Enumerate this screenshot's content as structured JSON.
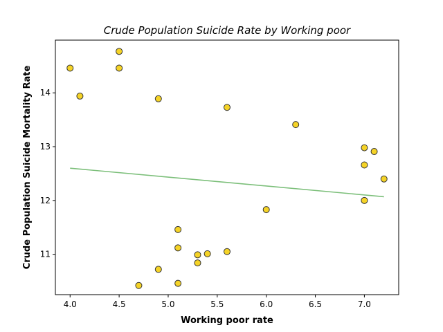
{
  "chart_data": {
    "type": "scatter",
    "title": "Crude Population Suicide Rate by Working poor",
    "xlabel": "Working poor rate",
    "ylabel": "Crude Population Suicide Mortality Rate",
    "xlim": [
      3.85,
      7.35
    ],
    "ylim": [
      10.25,
      14.98
    ],
    "x_ticks": [
      4.0,
      4.5,
      5.0,
      5.5,
      6.0,
      6.5,
      7.0
    ],
    "x_tick_labels": [
      "4.0",
      "4.5",
      "5.0",
      "5.5",
      "6.0",
      "6.5",
      "7.0"
    ],
    "y_ticks": [
      11,
      12,
      13,
      14
    ],
    "y_tick_labels": [
      "11",
      "12",
      "13",
      "14"
    ],
    "grid": false,
    "marker_color": "#f5d327",
    "marker_edge_color": "#333333",
    "trend_color": "#7cbf7a",
    "points": [
      {
        "x": 4.0,
        "y": 14.46
      },
      {
        "x": 4.1,
        "y": 13.94
      },
      {
        "x": 4.5,
        "y": 14.77
      },
      {
        "x": 4.5,
        "y": 14.46
      },
      {
        "x": 4.9,
        "y": 13.89
      },
      {
        "x": 5.6,
        "y": 13.73
      },
      {
        "x": 6.3,
        "y": 13.41
      },
      {
        "x": 7.0,
        "y": 12.98
      },
      {
        "x": 7.1,
        "y": 12.91
      },
      {
        "x": 7.0,
        "y": 12.66
      },
      {
        "x": 7.2,
        "y": 12.4
      },
      {
        "x": 7.0,
        "y": 12.0
      },
      {
        "x": 6.0,
        "y": 11.83
      },
      {
        "x": 5.1,
        "y": 11.46
      },
      {
        "x": 5.1,
        "y": 11.12
      },
      {
        "x": 5.3,
        "y": 10.99
      },
      {
        "x": 5.4,
        "y": 11.01
      },
      {
        "x": 5.6,
        "y": 11.05
      },
      {
        "x": 5.3,
        "y": 10.84
      },
      {
        "x": 4.9,
        "y": 10.72
      },
      {
        "x": 4.7,
        "y": 10.42
      },
      {
        "x": 5.1,
        "y": 10.46
      }
    ],
    "trend_line": {
      "x": [
        4.0,
        7.2
      ],
      "y": [
        12.6,
        12.07
      ]
    }
  }
}
